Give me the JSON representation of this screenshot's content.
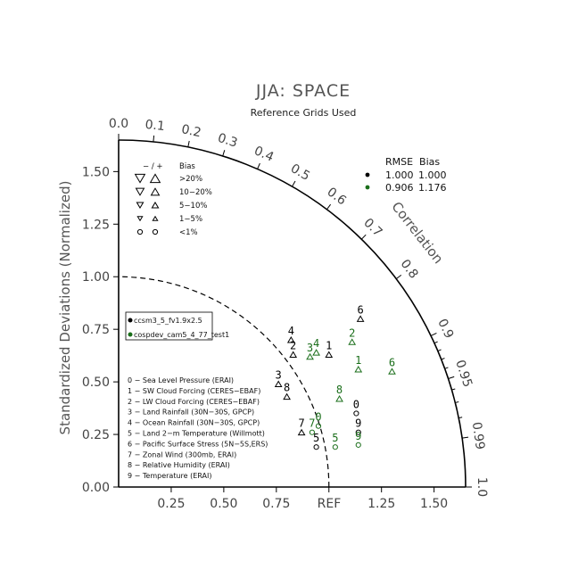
{
  "chart_data": {
    "type": "taylor-diagram",
    "title": "JJA: SPACE",
    "subtitle": "Reference Grids Used",
    "ylabel": "Standardized Deviations (Normalized)",
    "corr_label": "Correlation",
    "ref_label": "REF",
    "radial_max": 1.65,
    "x_ticks": [
      "0.25",
      "0.50",
      "0.75",
      "1.25",
      "1.50"
    ],
    "x_tick_values": [
      0.25,
      0.5,
      0.75,
      1.25,
      1.5
    ],
    "y_ticks": [
      "0.00",
      "0.25",
      "0.50",
      "0.75",
      "1.00",
      "1.25",
      "1.50"
    ],
    "y_tick_values": [
      0,
      0.25,
      0.5,
      0.75,
      1.0,
      1.25,
      1.5
    ],
    "corr_ticks": [
      {
        "v": 0.0,
        "t": "0.0"
      },
      {
        "v": 0.1,
        "t": "0.1"
      },
      {
        "v": 0.2,
        "t": "0.2"
      },
      {
        "v": 0.3,
        "t": "0.3"
      },
      {
        "v": 0.4,
        "t": "0.4"
      },
      {
        "v": 0.5,
        "t": "0.5"
      },
      {
        "v": 0.6,
        "t": "0.6"
      },
      {
        "v": 0.7,
        "t": "0.7"
      },
      {
        "v": 0.8,
        "t": "0.8"
      },
      {
        "v": 0.9,
        "t": "0.9"
      },
      {
        "v": 0.95,
        "t": "0.95"
      },
      {
        "v": 0.99,
        "t": "0.99"
      },
      {
        "v": 1.0,
        "t": "1.0"
      }
    ],
    "rmse_header": "RMSE  Bias",
    "series": [
      {
        "name": "ccsm3_5_fv1.9x2.5",
        "color": "#000000",
        "rmse": "1.000",
        "bias": "1.000",
        "points": [
          {
            "id": "0",
            "x": 1.13,
            "y": 0.35,
            "m": "circle"
          },
          {
            "id": "1",
            "x": 1.0,
            "y": 0.63,
            "m": "tri-up"
          },
          {
            "id": "2",
            "x": 0.83,
            "y": 0.63,
            "m": "tri-up"
          },
          {
            "id": "3",
            "x": 0.76,
            "y": 0.49,
            "m": "tri-up"
          },
          {
            "id": "4",
            "x": 0.82,
            "y": 0.7,
            "m": "tri-up"
          },
          {
            "id": "5",
            "x": 0.94,
            "y": 0.19,
            "m": "circle"
          },
          {
            "id": "6",
            "x": 1.15,
            "y": 0.8,
            "m": "tri-up"
          },
          {
            "id": "7",
            "x": 0.87,
            "y": 0.26,
            "m": "tri-up"
          },
          {
            "id": "8",
            "x": 0.8,
            "y": 0.43,
            "m": "tri-up"
          },
          {
            "id": "9",
            "x": 1.14,
            "y": 0.26,
            "m": "circle"
          }
        ]
      },
      {
        "name": "cospdev_cam5_4_77_test1",
        "color": "#1a6e1a",
        "rmse": "0.906",
        "bias": "1.176",
        "points": [
          {
            "id": "0",
            "x": 0.95,
            "y": 0.29,
            "m": "circle"
          },
          {
            "id": "1",
            "x": 1.14,
            "y": 0.56,
            "m": "tri-up"
          },
          {
            "id": "2",
            "x": 1.11,
            "y": 0.69,
            "m": "tri-up"
          },
          {
            "id": "3",
            "x": 0.91,
            "y": 0.62,
            "m": "tri-up"
          },
          {
            "id": "4",
            "x": 0.94,
            "y": 0.64,
            "m": "tri-up"
          },
          {
            "id": "5",
            "x": 1.03,
            "y": 0.19,
            "m": "circle"
          },
          {
            "id": "6",
            "x": 1.3,
            "y": 0.55,
            "m": "tri-up"
          },
          {
            "id": "7",
            "x": 0.92,
            "y": 0.26,
            "m": "circle"
          },
          {
            "id": "8",
            "x": 1.05,
            "y": 0.42,
            "m": "tri-up"
          },
          {
            "id": "9",
            "x": 1.14,
            "y": 0.2,
            "m": "circle"
          }
        ]
      }
    ],
    "bias_legend": {
      "header_sign": "−  /  +",
      "header_label": "Bias",
      "rows": [
        {
          "label": ">20%",
          "size": 6
        },
        {
          "label": "10−20%",
          "size": 5
        },
        {
          "label": "5−10%",
          "size": 4
        },
        {
          "label": "1−5%",
          "size": 3
        },
        {
          "label": "<1%",
          "size": 0
        }
      ]
    },
    "variables": [
      "0 − Sea Level Pressure (ERAI)",
      "1 − SW Cloud Forcing (CERES−EBAF)",
      "2 − LW Cloud Forcing (CERES−EBAF)",
      "3 − Land Rainfall (30N−30S, GPCP)",
      "4 − Ocean Rainfall (30N−30S, GPCP)",
      "5 − Land 2−m Temperature (Willmott)",
      "6 − Pacific Surface Stress (5N−5S,ERS)",
      "7 − Zonal Wind (300mb, ERAI)",
      "8 − Relative Humidity (ERAI)",
      "9 − Temperature (ERAI)"
    ]
  }
}
